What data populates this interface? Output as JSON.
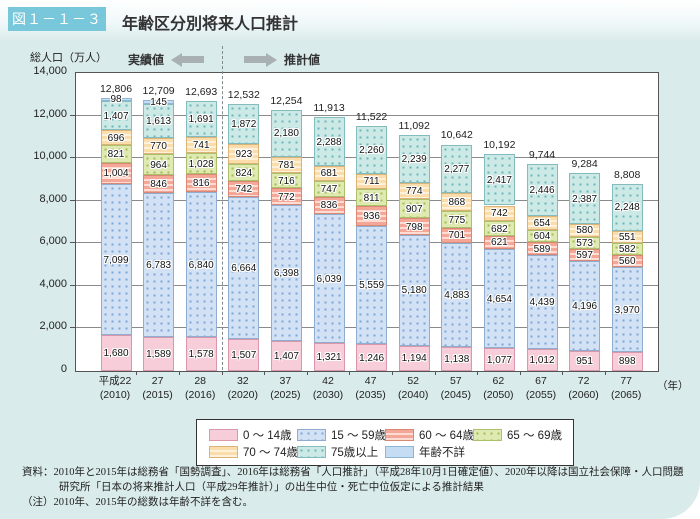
{
  "header": {
    "figure_label": "図１－１－３",
    "title": "年齢区分別将来人口推計"
  },
  "chart": {
    "y_axis_title": "総人口（万人）",
    "actual_label": "実績値",
    "projected_label": "推計値",
    "year_unit": "（年）",
    "y_ticks": [
      "14,000",
      "12,000",
      "10,000",
      "8,000",
      "6,000",
      "4,000",
      "2,000",
      "0"
    ]
  },
  "chart_data": {
    "type": "bar",
    "stacked": true,
    "title": "年齢区分別将来人口推計",
    "ylabel": "総人口（万人）",
    "ylim": [
      0,
      14000
    ],
    "grid_interval": 2000,
    "divider_after_category_index": 2,
    "categories": [
      {
        "era": "平成22",
        "year": "(2010)"
      },
      {
        "era": "27",
        "year": "(2015)"
      },
      {
        "era": "28",
        "year": "(2016)"
      },
      {
        "era": "32",
        "year": "(2020)"
      },
      {
        "era": "37",
        "year": "(2025)"
      },
      {
        "era": "42",
        "year": "(2030)"
      },
      {
        "era": "47",
        "year": "(2035)"
      },
      {
        "era": "52",
        "year": "(2040)"
      },
      {
        "era": "57",
        "year": "(2045)"
      },
      {
        "era": "62",
        "year": "(2050)"
      },
      {
        "era": "67",
        "year": "(2055)"
      },
      {
        "era": "72",
        "year": "(2060)"
      },
      {
        "era": "77",
        "year": "(2065)"
      }
    ],
    "totals": [
      12806,
      12709,
      12693,
      12532,
      12254,
      11913,
      11522,
      11092,
      10642,
      10192,
      9744,
      9284,
      8808
    ],
    "series": [
      {
        "name": "0 ～ 14歳",
        "pattern": "plain",
        "fill": "#f8cdda",
        "accent": "#f8cdda",
        "border": "#d897ab",
        "values": [
          1680,
          1589,
          1578,
          1507,
          1407,
          1321,
          1246,
          1194,
          1138,
          1077,
          1012,
          951,
          898
        ]
      },
      {
        "name": "15 ～ 59歳",
        "pattern": "dots",
        "fill": "#d2e1f4",
        "accent": "#7ba6d8",
        "border": "#8fadcf",
        "values": [
          7099,
          6783,
          6840,
          6664,
          6398,
          6039,
          5559,
          5180,
          4883,
          4654,
          4439,
          4196,
          3970
        ]
      },
      {
        "name": "60 ～ 64歳",
        "pattern": "hstripes",
        "fill": "#f4a797",
        "accent": "#fcdcd3",
        "border": "#d98876",
        "values": [
          1004,
          846,
          816,
          742,
          772,
          836,
          936,
          798,
          701,
          621,
          589,
          597,
          560
        ]
      },
      {
        "name": "65 ～ 69歳",
        "pattern": "dots",
        "fill": "#dfe9b2",
        "accent": "#a3bd52",
        "border": "#abc06a",
        "values": [
          821,
          964,
          1028,
          824,
          716,
          747,
          811,
          907,
          775,
          682,
          604,
          573,
          582
        ]
      },
      {
        "name": "70 ～ 74歳",
        "pattern": "hstripes",
        "fill": "#fbddab",
        "accent": "#fdf1da",
        "border": "#d9b378",
        "values": [
          696,
          770,
          741,
          923,
          781,
          681,
          711,
          774,
          868,
          742,
          654,
          580,
          551
        ]
      },
      {
        "name": "75歳以上",
        "pattern": "dots",
        "fill": "#cde9e6",
        "accent": "#66b7ba",
        "border": "#83bcbe",
        "values": [
          1407,
          1613,
          1691,
          1872,
          2180,
          2288,
          2260,
          2239,
          2277,
          2417,
          2446,
          2387,
          2248
        ]
      },
      {
        "name": "年齢不詳",
        "pattern": "plain",
        "fill": "#c5ddf2",
        "accent": "#c5ddf2",
        "border": "#90b4d4",
        "values": [
          98,
          145,
          0,
          0,
          0,
          0,
          0,
          0,
          0,
          0,
          0,
          0,
          0
        ]
      }
    ],
    "legend_entries": [
      "0 ～ 14歳",
      "15 ～ 59歳",
      "60 ～ 64歳",
      "65 ～ 69歳",
      "70 ～ 74歳",
      "75歳以上",
      "年齢不詳"
    ]
  },
  "footnote": {
    "source": "資料：2010年と2015年は総務省「国勢調査」、2016年は総務省「人口推計」（平成28年10月1日確定値）、2020年以降は国立社会保障・人口問題研究所「日本の将来推計人口（平成29年推計）」の出生中位・死亡中位仮定による推計結果",
    "note": "（注）2010年、2015年の総数は年齢不詳を含む。"
  }
}
